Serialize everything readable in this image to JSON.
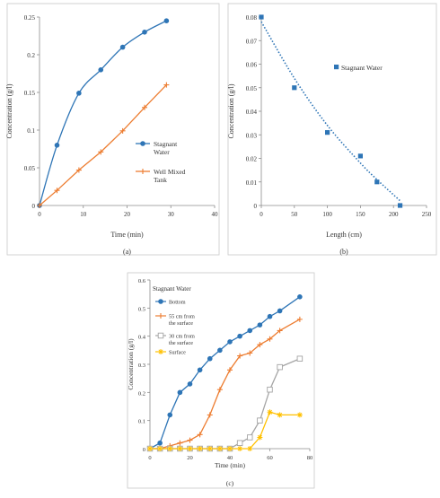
{
  "chart_data": [
    {
      "type": "line",
      "panel_label": "(a)",
      "xlabel": "Time (min)",
      "ylabel": "Concentration (g/l)",
      "xlim": [
        0,
        40
      ],
      "ylim": [
        0,
        0.25
      ],
      "xticks": [
        "0",
        "10",
        "20",
        "30",
        "40"
      ],
      "yticks": [
        "0",
        "0.05",
        "0.1",
        "0.15",
        "0.2",
        "0.25"
      ],
      "legend": "right",
      "series": [
        {
          "name": "Stagnant Water",
          "color": "#2e75b6",
          "marker": "circle",
          "smooth": true,
          "x": [
            0,
            4,
            9,
            14,
            19,
            24,
            29
          ],
          "y": [
            0,
            0.08,
            0.149,
            0.18,
            0.21,
            0.23,
            0.245
          ]
        },
        {
          "name": "Well Mixed Tank",
          "color": "#ed7d31",
          "marker": "plus",
          "smooth": false,
          "x": [
            0,
            4,
            9,
            14,
            19,
            24,
            29
          ],
          "y": [
            0,
            0.02,
            0.047,
            0.071,
            0.099,
            0.13,
            0.16
          ]
        }
      ]
    },
    {
      "type": "scatter",
      "panel_label": "(b)",
      "xlabel": "Length (cm)",
      "ylabel": "Concentration (g/l)",
      "xlim": [
        0,
        250
      ],
      "ylim": [
        0,
        0.08
      ],
      "xticks": [
        "0",
        "50",
        "100",
        "150",
        "200",
        "250"
      ],
      "yticks": [
        "0",
        "0.01",
        "0.02",
        "0.03",
        "0.04",
        "0.05",
        "0.06",
        "0.07",
        "0.08"
      ],
      "legend": "top-right",
      "series": [
        {
          "name": "Stagnant Water",
          "color": "#2e75b6",
          "marker": "square",
          "x": [
            0,
            50,
            100,
            150,
            175,
            210
          ],
          "y": [
            0.08,
            0.05,
            0.031,
            0.021,
            0.01,
            0.0
          ]
        }
      ],
      "trendline": {
        "color": "#2e75b6",
        "style": "dotted",
        "x": [
          0,
          50,
          100,
          150,
          175,
          210
        ],
        "y": [
          0.078,
          0.054,
          0.034,
          0.018,
          0.011,
          0.002
        ]
      }
    },
    {
      "type": "line",
      "panel_label": "(c)",
      "title": "Stagnant Water",
      "xlabel": "Time (min)",
      "ylabel": "Concentration (g/l)",
      "xlim": [
        0,
        80
      ],
      "ylim": [
        0,
        0.6
      ],
      "xticks": [
        "0",
        "20",
        "40",
        "60",
        "80"
      ],
      "yticks": [
        "0",
        "0.1",
        "0.2",
        "0.3",
        "0.4",
        "0.5",
        "0.6"
      ],
      "legend": "top-left",
      "series": [
        {
          "name": "Bottom",
          "color": "#2e75b6",
          "marker": "circle",
          "x": [
            0,
            5,
            10,
            15,
            20,
            25,
            30,
            35,
            40,
            45,
            50,
            55,
            60,
            65,
            75
          ],
          "y": [
            0,
            0.02,
            0.12,
            0.2,
            0.23,
            0.28,
            0.32,
            0.35,
            0.38,
            0.4,
            0.42,
            0.44,
            0.47,
            0.49,
            0.54
          ]
        },
        {
          "name": "55 cm from the surface",
          "color": "#ed7d31",
          "marker": "plus",
          "x": [
            0,
            5,
            10,
            15,
            20,
            25,
            30,
            35,
            40,
            45,
            50,
            55,
            60,
            65,
            75
          ],
          "y": [
            0,
            0,
            0.01,
            0.02,
            0.03,
            0.05,
            0.12,
            0.21,
            0.28,
            0.33,
            0.34,
            0.37,
            0.39,
            0.42,
            0.46
          ]
        },
        {
          "name": "30 cm from the surface",
          "color": "#a5a5a5",
          "marker": "square-open",
          "x": [
            0,
            5,
            10,
            15,
            20,
            25,
            30,
            35,
            40,
            45,
            50,
            55,
            60,
            65,
            75
          ],
          "y": [
            0,
            0,
            0,
            0,
            0,
            0,
            0,
            0,
            0,
            0.02,
            0.04,
            0.1,
            0.21,
            0.29,
            0.32
          ]
        },
        {
          "name": "Surface",
          "color": "#ffc000",
          "marker": "asterisk",
          "x": [
            0,
            5,
            10,
            15,
            20,
            25,
            30,
            35,
            40,
            45,
            50,
            55,
            60,
            65,
            75
          ],
          "y": [
            0,
            0,
            0,
            0,
            0,
            0,
            0,
            0,
            0,
            0,
            0,
            0.04,
            0.13,
            0.12,
            0.12
          ]
        }
      ]
    }
  ]
}
